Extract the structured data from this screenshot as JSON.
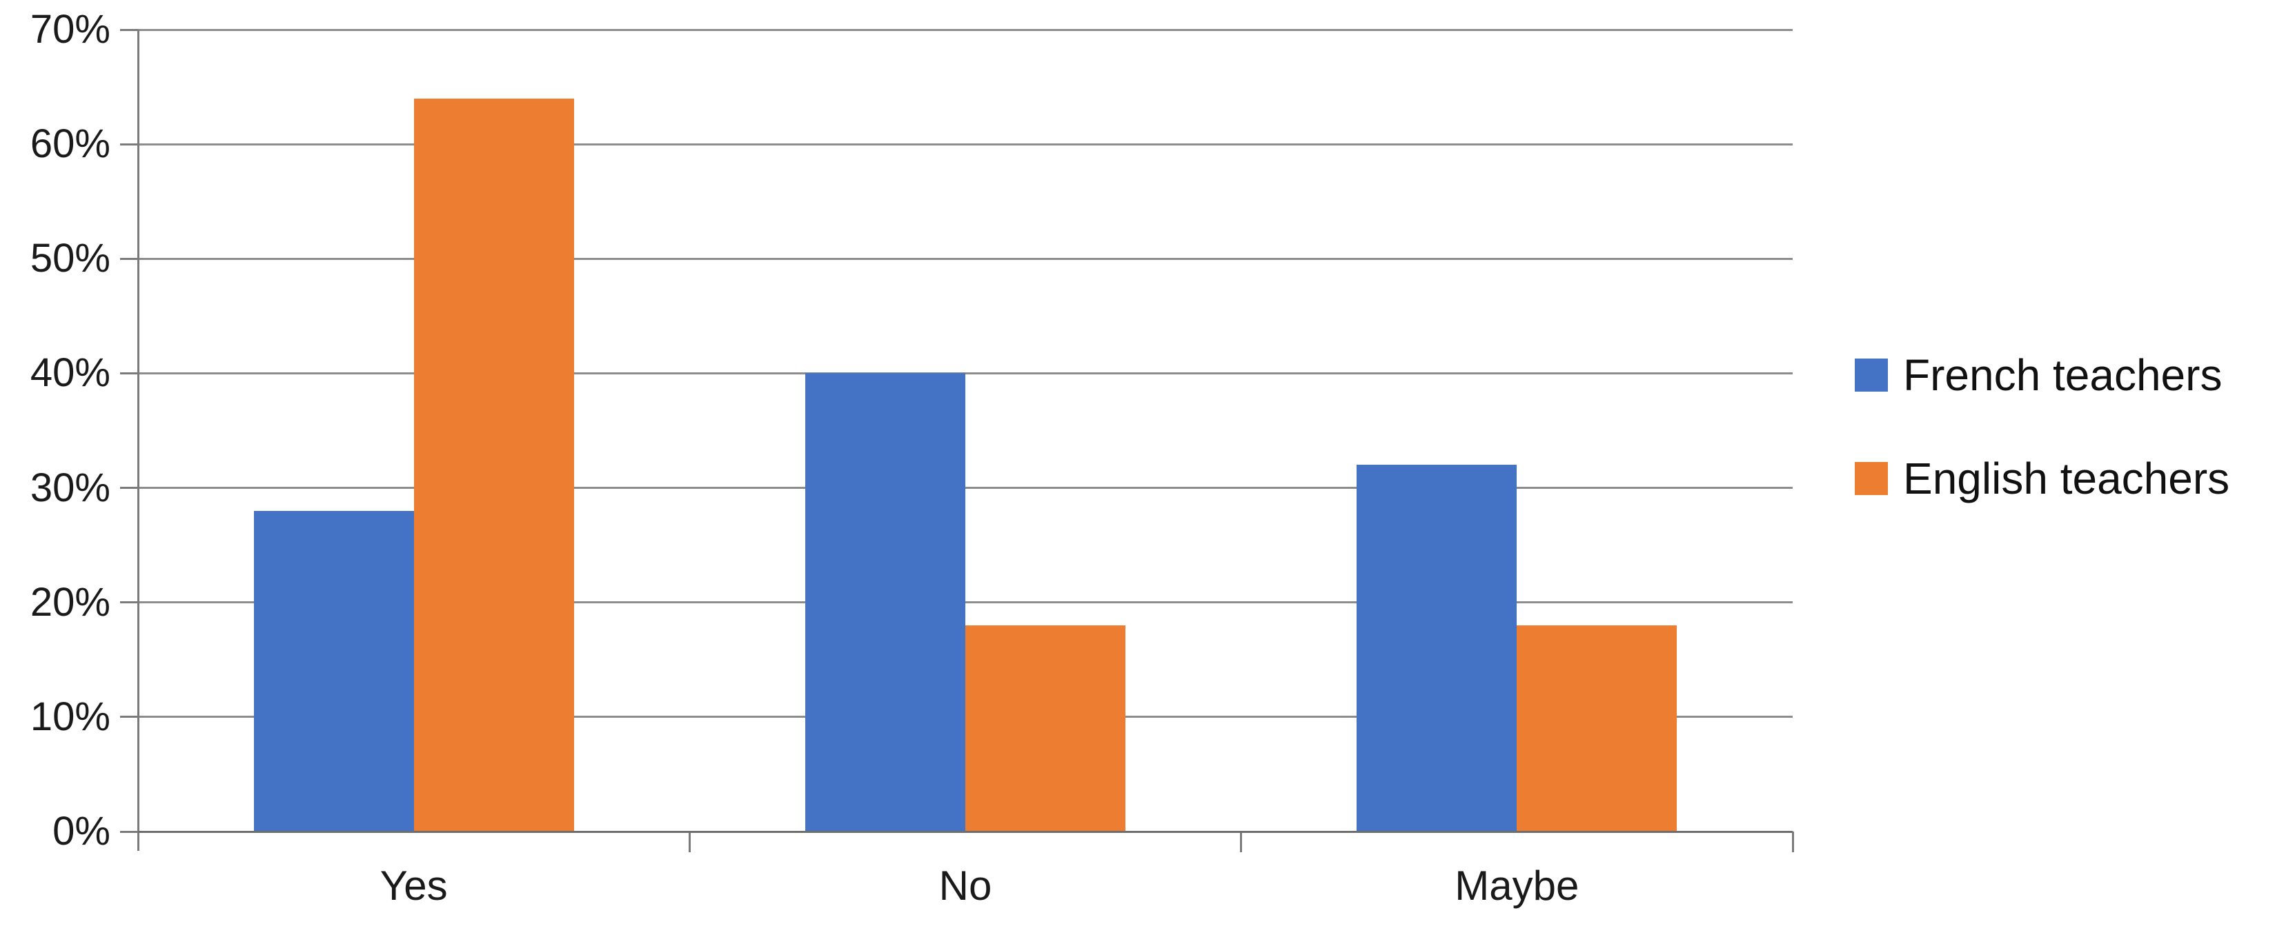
{
  "chart_data": {
    "type": "bar",
    "categories": [
      "Yes",
      "No",
      "Maybe"
    ],
    "series": [
      {
        "name": "French teachers",
        "color": "#4472C4",
        "values": [
          28,
          40,
          32
        ]
      },
      {
        "name": "English teachers",
        "color": "#ED7D31",
        "values": [
          64,
          18,
          18
        ]
      }
    ],
    "title": "",
    "xlabel": "",
    "ylabel": "",
    "ylim": [
      0,
      70
    ],
    "ytick_step": 10,
    "ytick_labels": [
      "0%",
      "10%",
      "20%",
      "30%",
      "40%",
      "50%",
      "60%",
      "70%"
    ],
    "grid": true,
    "legend_position": "right",
    "colors": {
      "gridline": "#8c8c8c",
      "axis": "#6e6e6e",
      "text": "#1a1a1a",
      "background": "#ffffff"
    }
  }
}
